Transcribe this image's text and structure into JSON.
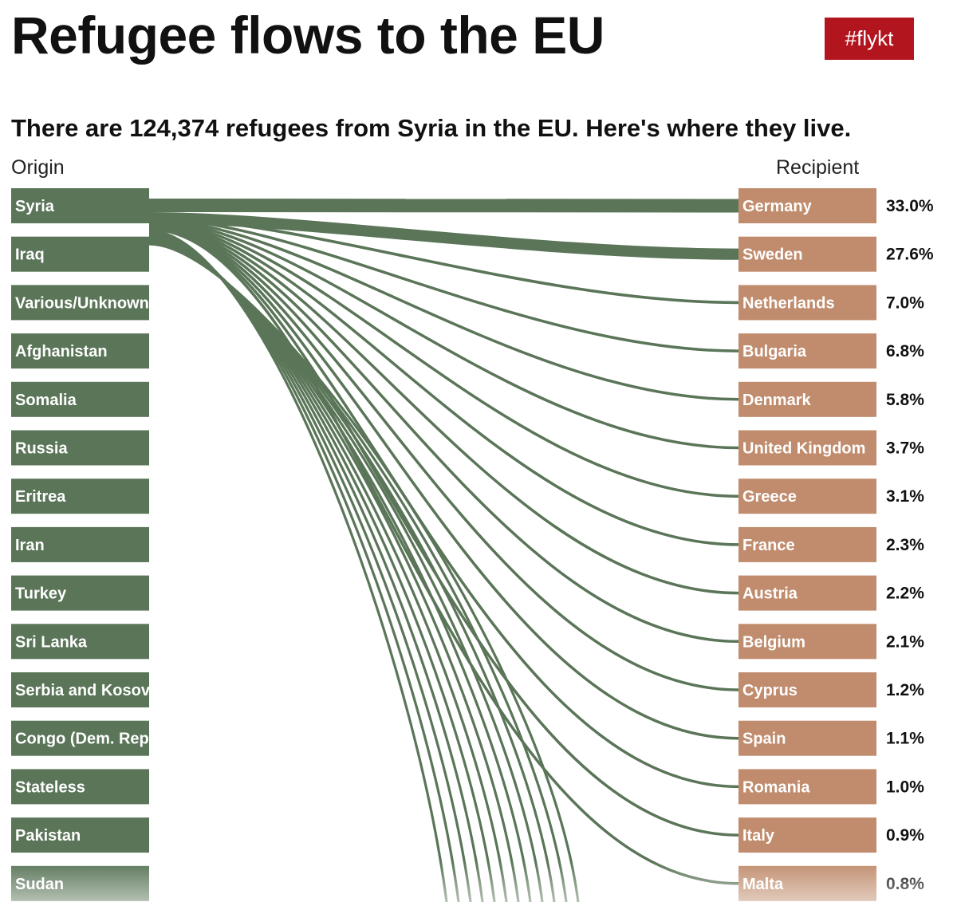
{
  "header": {
    "title": "Refugee flows to the EU",
    "tag": "#flykt",
    "subtitle": "There are 124,374 refugees from Syria in the EU. Here's where they live.",
    "origin_label": "Origin",
    "recipient_label": "Recipient"
  },
  "colors": {
    "origin": "#5a7558",
    "recipient": "#c08c6d",
    "flow": "#5a7558",
    "tag": "#b3151f"
  },
  "chart_data": {
    "type": "sankey",
    "title": "Refugee flows to the EU",
    "subtitle": "There are 124,374 refugees from Syria in the EU. Here's where they live.",
    "origins": [
      "Syria",
      "Iraq",
      "Various/Unknown",
      "Afghanistan",
      "Somalia",
      "Russia",
      "Eritrea",
      "Iran",
      "Turkey",
      "Sri Lanka",
      "Serbia and Kosovo",
      "Congo (Dem. Rep",
      "Stateless",
      "Pakistan",
      "Sudan"
    ],
    "selected_origin": "Syria",
    "selected_total": 124374,
    "recipients": [
      {
        "name": "Germany",
        "share": 33.0,
        "label": "33.0%"
      },
      {
        "name": "Sweden",
        "share": 27.6,
        "label": "27.6%"
      },
      {
        "name": "Netherlands",
        "share": 7.0,
        "label": "7.0%"
      },
      {
        "name": "Bulgaria",
        "share": 6.8,
        "label": "6.8%"
      },
      {
        "name": "Denmark",
        "share": 5.8,
        "label": "5.8%"
      },
      {
        "name": "United Kingdom",
        "share": 3.7,
        "label": "3.7%"
      },
      {
        "name": "Greece",
        "share": 3.1,
        "label": "3.1%"
      },
      {
        "name": "France",
        "share": 2.3,
        "label": "2.3%"
      },
      {
        "name": "Austria",
        "share": 2.2,
        "label": "2.2%"
      },
      {
        "name": "Belgium",
        "share": 2.1,
        "label": "2.1%"
      },
      {
        "name": "Cyprus",
        "share": 1.2,
        "label": "1.2%"
      },
      {
        "name": "Spain",
        "share": 1.1,
        "label": "1.1%"
      },
      {
        "name": "Romania",
        "share": 1.0,
        "label": "1.0%"
      },
      {
        "name": "Italy",
        "share": 0.9,
        "label": "0.9%"
      },
      {
        "name": "Malta",
        "share": 0.8,
        "label": "0.8%"
      }
    ]
  }
}
